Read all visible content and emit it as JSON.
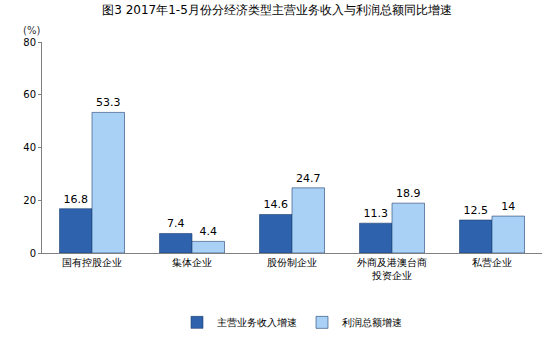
{
  "chart_data": {
    "type": "bar",
    "title": "图3 2017年1-5月份分经济类型主营业务收入与利润总额同比增速",
    "y_label": "(%)",
    "categories": [
      "国有控股企业",
      "集体企业",
      "股份制企业",
      "外商及港澳台商投资企业",
      "私营企业"
    ],
    "series": [
      {
        "name": "主营业务收入增速",
        "color": "#2e62ad",
        "values": [
          16.8,
          7.4,
          14.6,
          11.3,
          12.5
        ]
      },
      {
        "name": "利润总额增速",
        "color": "#a9d0f5",
        "values": [
          53.3,
          4.4,
          24.7,
          18.9,
          14.0
        ]
      }
    ],
    "ylim": [
      0,
      80
    ],
    "yticks": [
      0,
      20,
      40,
      60,
      80
    ],
    "grid": false,
    "legend": "bottom",
    "data_labels": true
  }
}
